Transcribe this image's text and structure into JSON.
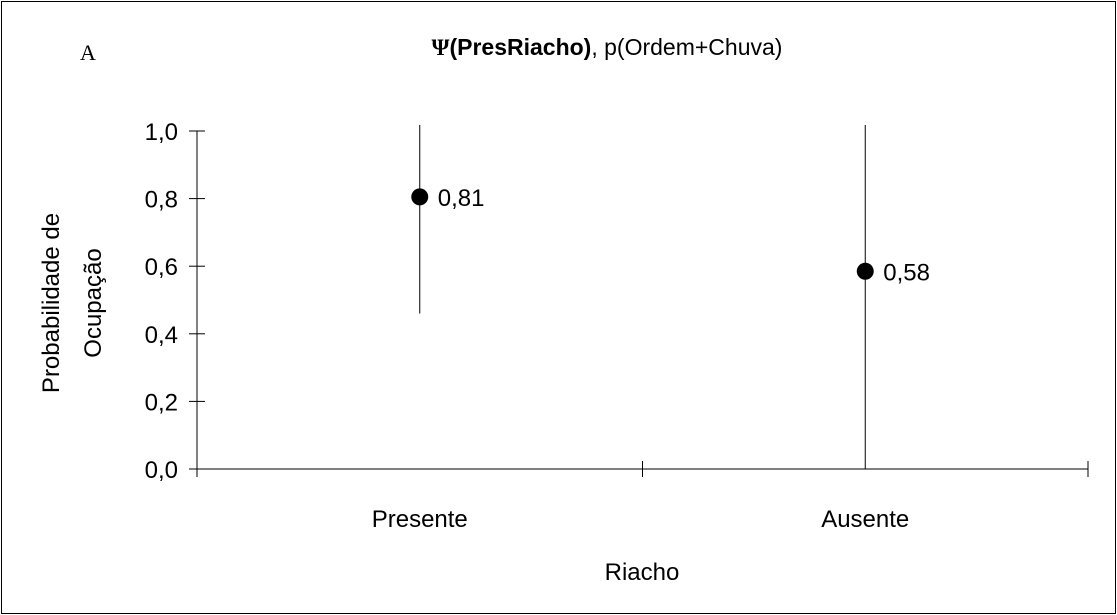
{
  "chart_data": {
    "type": "scatter",
    "panel_letter": "A",
    "title": {
      "psi": "Ψ",
      "bold_part": "(PresRiacho)",
      "rest": ", p(Ordem+Chuva)"
    },
    "xlabel": "Riacho",
    "ylabel_line1": "Probabilidade de",
    "ylabel_line2": "Ocupação",
    "categories": [
      "Presente",
      "Ausente"
    ],
    "values": [
      0.805,
      0.585
    ],
    "data_labels": [
      "0,81",
      "0,58"
    ],
    "error_bars": [
      {
        "low": 0.46,
        "high": 1.0
      },
      {
        "low": 0.0,
        "high": 1.0
      }
    ],
    "ylim": [
      0,
      1.0
    ],
    "yticks": [
      {
        "value": 0.0,
        "label": "0,0"
      },
      {
        "value": 0.2,
        "label": "0,2"
      },
      {
        "value": 0.4,
        "label": "0,4"
      },
      {
        "value": 0.6,
        "label": "0,6"
      },
      {
        "value": 0.8,
        "label": "0,8"
      },
      {
        "value": 1.0,
        "label": "1,0"
      }
    ],
    "grid": false,
    "legend": "none",
    "colors": {
      "marker": "#000000",
      "axis": "#000000",
      "background": "#ffffff"
    }
  }
}
